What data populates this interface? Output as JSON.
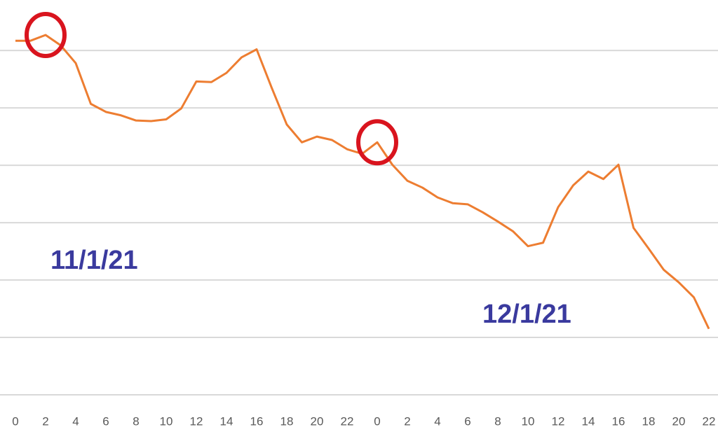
{
  "chart_data": {
    "type": "line",
    "categories": [
      0,
      null,
      2,
      null,
      4,
      null,
      6,
      null,
      8,
      null,
      10,
      null,
      12,
      null,
      14,
      null,
      16,
      null,
      18,
      null,
      20,
      null,
      22,
      null,
      0,
      null,
      2,
      null,
      4,
      null,
      6,
      null,
      8,
      null,
      10,
      null,
      12,
      null,
      14,
      null,
      16,
      null,
      18,
      null,
      20,
      null,
      22
    ],
    "series": [
      {
        "color": "#ed7d31",
        "values": [
          6.17,
          6.17,
          6.27,
          6.09,
          5.78,
          5.07,
          4.93,
          4.87,
          4.78,
          4.77,
          4.8,
          4.99,
          5.46,
          5.45,
          5.61,
          5.88,
          6.02,
          5.35,
          4.71,
          4.4,
          4.5,
          4.44,
          4.28,
          4.2,
          4.4,
          4.01,
          3.73,
          3.61,
          3.44,
          3.34,
          3.32,
          3.18,
          3.02,
          2.85,
          2.59,
          2.65,
          3.27,
          3.65,
          3.89,
          3.76,
          4.01,
          2.91,
          2.55,
          2.18,
          1.96,
          1.7,
          1.15
        ]
      }
    ],
    "highlights": [
      2,
      24
    ],
    "highlight_color": "#d9141e",
    "annotations": [
      "11/1/21",
      "12/1/21"
    ],
    "ylim": [
      0,
      6.88
    ],
    "yticks": [
      0,
      1,
      2,
      3,
      4,
      5,
      6
    ],
    "grid": true
  }
}
